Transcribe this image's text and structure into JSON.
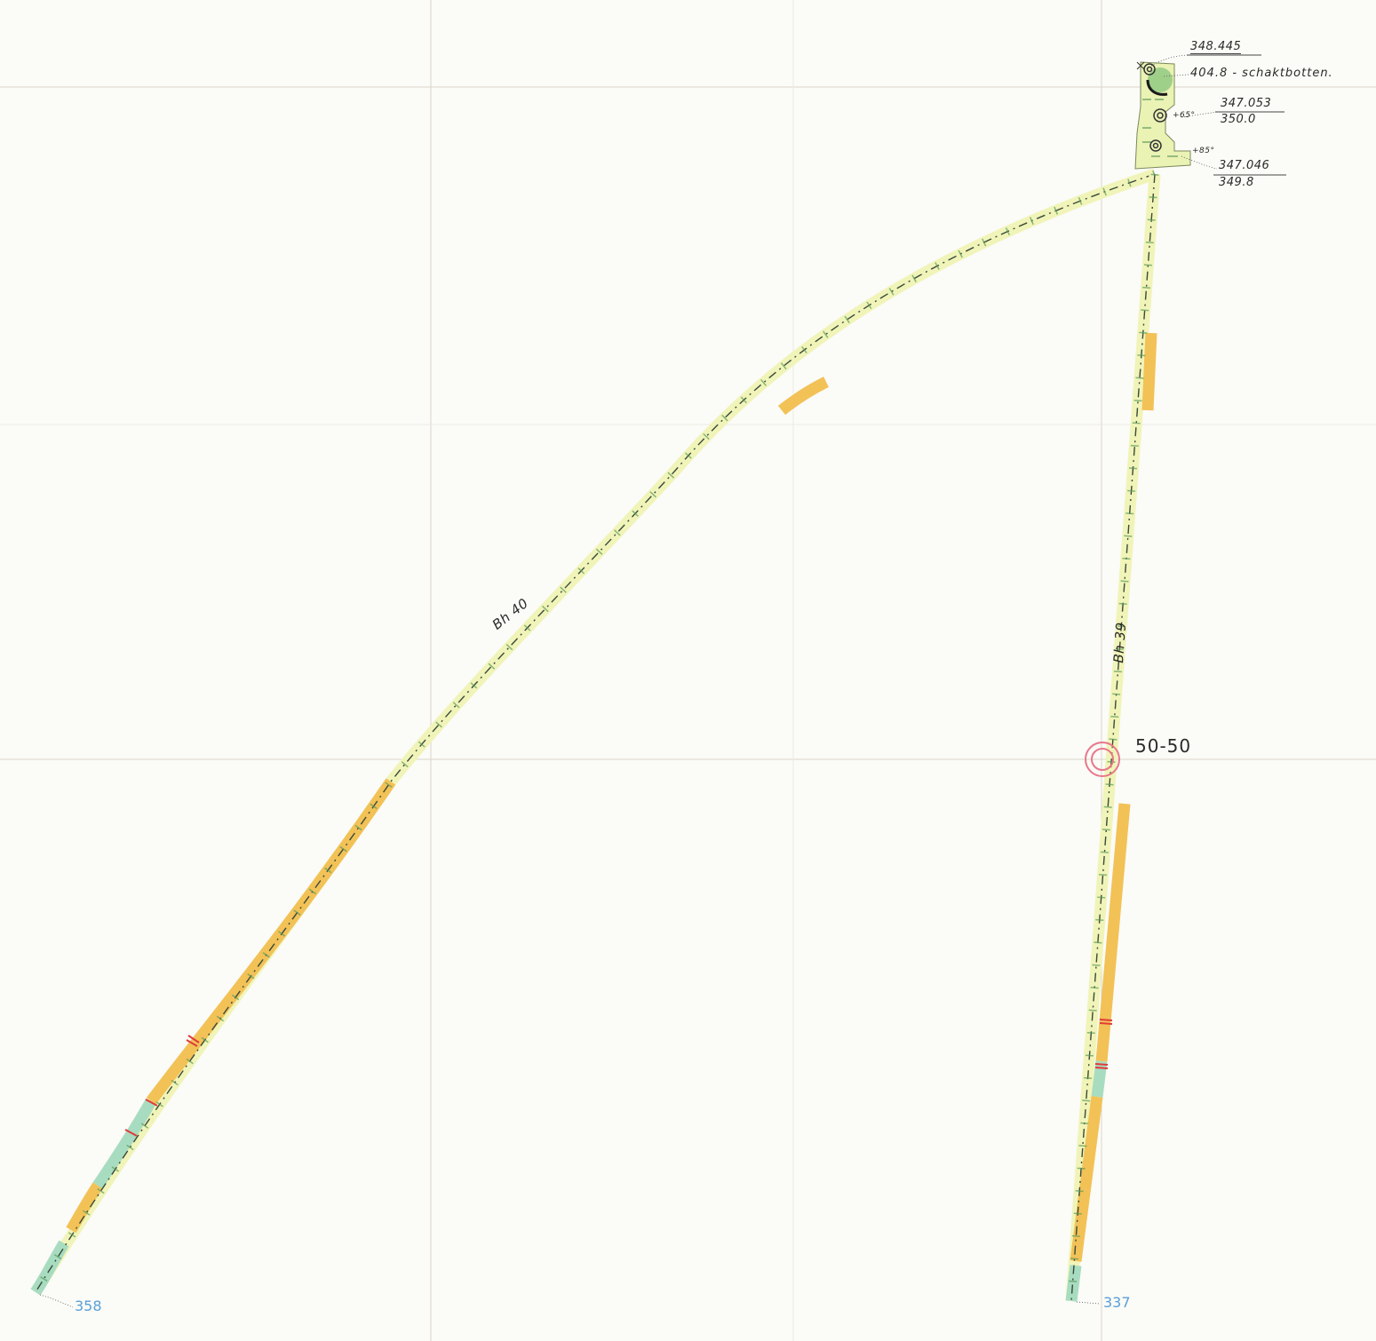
{
  "map": {
    "background": "#fbfbf7",
    "grid_color": "#d8d4c8",
    "grid_label": "50-50",
    "boreholes": [
      {
        "name": "Bh 40",
        "end_label": "358"
      },
      {
        "name": "Bh 39",
        "end_label": "337"
      }
    ],
    "shaft": {
      "top_value": "348.445",
      "top_note": "404.8 - schaktbotten.",
      "hole1_angle": "+65°",
      "hole1_upper": "347.053",
      "hole1_lower": "350.0",
      "hole2_angle": "+85°",
      "hole2_upper": "347.046",
      "hole2_lower": "349.8"
    },
    "colors": {
      "light_zone": "#f1f4b8",
      "orange_zone": "#f2c257",
      "green_zone": "#a8dcc0",
      "red_mark": "#e23a3a",
      "center_mark": "#e8778a",
      "label_blue": "#5aa0d8"
    }
  }
}
